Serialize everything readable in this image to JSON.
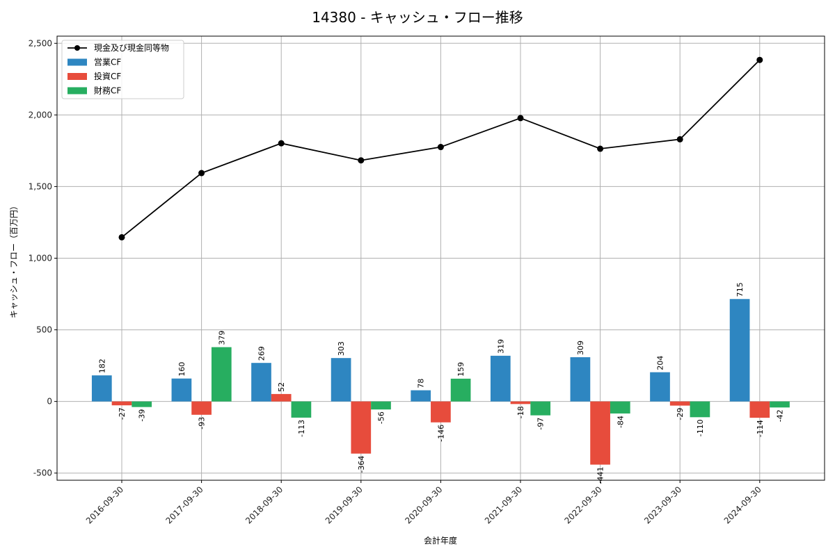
{
  "chart_data": {
    "type": "bar",
    "title": "14380 - キャッシュ・フロー推移",
    "xlabel": "会計年度",
    "ylabel": "キャッシュ・フロー（百万円）",
    "categories": [
      "2016-09-30",
      "2017-09-30",
      "2018-09-30",
      "2019-09-30",
      "2020-09-30",
      "2021-09-30",
      "2022-09-30",
      "2023-09-30",
      "2024-09-30"
    ],
    "ylim": [
      -550,
      2550
    ],
    "yticks": [
      -500,
      0,
      500,
      1000,
      1500,
      2000,
      2500
    ],
    "ytick_labels": [
      "-500",
      "0",
      "500",
      "1,000",
      "1,500",
      "2,000",
      "2,500"
    ],
    "grid": true,
    "legend_position": "top-left",
    "series": [
      {
        "name": "営業CF",
        "kind": "bar",
        "color": "#2e86c1",
        "values": [
          182,
          160,
          269,
          303,
          78,
          319,
          309,
          204,
          715
        ],
        "labels": [
          "182",
          "160",
          "269",
          "303",
          "78",
          "319",
          "309",
          "204",
          "715"
        ]
      },
      {
        "name": "投資CF",
        "kind": "bar",
        "color": "#e74c3c",
        "values": [
          -27,
          -93,
          52,
          -364,
          -146,
          -18,
          -441,
          -29,
          -114
        ],
        "labels": [
          "-27",
          "-93",
          "52",
          "-364",
          "-146",
          "-18",
          "-441",
          "-29",
          "-114"
        ]
      },
      {
        "name": "財務CF",
        "kind": "bar",
        "color": "#27ae60",
        "values": [
          -39,
          379,
          -113,
          -56,
          159,
          -97,
          -84,
          -110,
          -42
        ],
        "labels": [
          "-39",
          "379",
          "-113",
          "-56",
          "159",
          "-97",
          "-84",
          "-110",
          "-42"
        ]
      },
      {
        "name": "現金及び現金同等物",
        "kind": "line",
        "color": "#000000",
        "values": [
          1146,
          1594,
          1802,
          1683,
          1776,
          1978,
          1764,
          1830,
          2384
        ]
      }
    ]
  }
}
